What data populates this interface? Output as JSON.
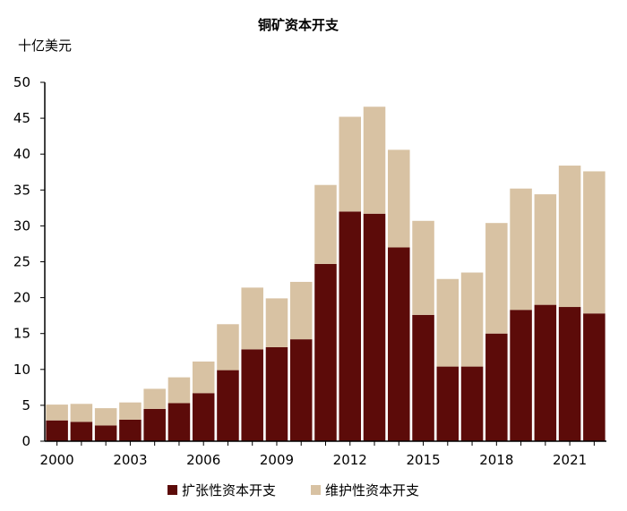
{
  "chart_data": {
    "type": "bar",
    "stacked": true,
    "title": "铜矿资本开支",
    "ylabel": "十亿美元",
    "xlabel": "",
    "ylim": [
      0,
      50
    ],
    "yticks": [
      0,
      5,
      10,
      15,
      20,
      25,
      30,
      35,
      40,
      45,
      50
    ],
    "x": [
      2000,
      2001,
      2002,
      2003,
      2004,
      2005,
      2006,
      2007,
      2008,
      2009,
      2010,
      2011,
      2012,
      2013,
      2014,
      2015,
      2016,
      2017,
      2018,
      2019,
      2020,
      2021,
      2022
    ],
    "xtick_labels": [
      "2000",
      "2003",
      "2006",
      "2009",
      "2012",
      "2015",
      "2018",
      "2021"
    ],
    "legend_position": "bottom",
    "grid": false,
    "series": [
      {
        "name": "扩张性资本开支",
        "color": "#5c0b09",
        "values": [
          2.9,
          2.7,
          2.2,
          3.0,
          4.5,
          5.3,
          6.7,
          9.9,
          12.8,
          13.1,
          14.2,
          24.7,
          32.0,
          31.7,
          27.0,
          17.6,
          10.4,
          10.4,
          15.0,
          18.3,
          19.0,
          18.7,
          17.8
        ]
      },
      {
        "name": "维护性资本开支",
        "color": "#d8c2a3",
        "values": [
          2.2,
          2.5,
          2.4,
          2.4,
          2.8,
          3.6,
          4.4,
          6.4,
          8.6,
          6.8,
          8.0,
          11.0,
          13.2,
          14.9,
          13.6,
          13.1,
          12.2,
          13.1,
          15.4,
          16.9,
          15.4,
          19.7,
          19.8
        ]
      }
    ]
  }
}
